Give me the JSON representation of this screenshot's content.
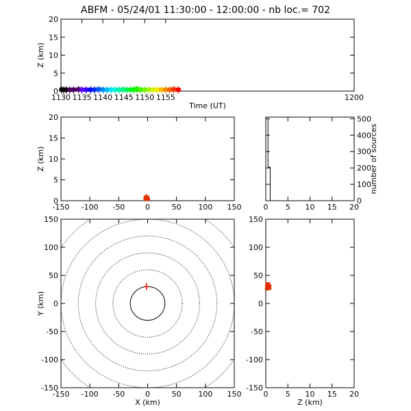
{
  "title": "ABFM - 05/24/01 11:30:00 - 12:00:00 - nb loc.=     702",
  "chart_data": [
    {
      "id": "time-height",
      "type": "scatter",
      "xlabel": "Time (UT)",
      "ylabel": "Z (km)",
      "xlim": [
        1130,
        1200
      ],
      "ylim": [
        0,
        20
      ],
      "xticks": [
        1130,
        1135,
        1140,
        1145,
        1150,
        1155,
        1200
      ],
      "yticks": [
        0,
        5,
        10,
        15,
        20
      ],
      "color_scale": "rainbow: black at 1130 through purple, blue, cyan, green, yellow, orange to red at 1158",
      "points_x": [
        1130.2,
        1130.7,
        1131.3,
        1132.1,
        1133.0,
        1134.2,
        1135.0,
        1136.0,
        1137.1,
        1138.0,
        1139.0,
        1140.1,
        1141.0,
        1142.0,
        1142.9,
        1143.9,
        1144.8,
        1145.7,
        1146.6,
        1147.4,
        1148.1,
        1149.0,
        1150.0,
        1151.1,
        1152.0,
        1153.0,
        1154.0,
        1155.0,
        1156.0,
        1156.9,
        1158.0
      ],
      "points_z": [
        0.3,
        0.3,
        0.3,
        0.3,
        0.3,
        0.4,
        0.3,
        0.3,
        0.3,
        0.3,
        0.4,
        0.3,
        0.3,
        0.3,
        0.3,
        0.3,
        0.3,
        0.3,
        0.3,
        0.3,
        0.5,
        0.3,
        0.3,
        0.3,
        0.3,
        0.3,
        0.3,
        0.3,
        0.3,
        0.4,
        0.3
      ]
    },
    {
      "id": "x-height",
      "type": "scatter",
      "xlabel": "",
      "ylabel": "Z (km)",
      "xlim": [
        -150,
        150
      ],
      "ylim": [
        0,
        20
      ],
      "xticks": [
        -150,
        -100,
        -50,
        0,
        50,
        100,
        150
      ],
      "yticks": [
        0,
        5,
        10,
        15,
        20
      ],
      "points": [
        {
          "x": -2,
          "z": 0.3
        },
        {
          "x": -3,
          "z": 0.5
        },
        {
          "x": -1,
          "z": 0.4
        },
        {
          "x": 0,
          "z": 0.3
        },
        {
          "x": -2,
          "z": 0.8
        }
      ]
    },
    {
      "id": "height-histogram",
      "type": "line",
      "xlabel": "",
      "ylabel": "number of sources",
      "xlim": [
        0,
        20
      ],
      "ylim": [
        0,
        510
      ],
      "xticks": [
        0,
        5,
        10,
        15,
        20
      ],
      "yticks": [
        0,
        100,
        200,
        300,
        400,
        500
      ],
      "steps": [
        {
          "z": 0,
          "count": 500
        },
        {
          "z": 0.5,
          "count": 205
        },
        {
          "z": 1,
          "count": 0
        }
      ]
    },
    {
      "id": "plan-view",
      "type": "scatter",
      "xlabel": "X (km)",
      "ylabel": "Y (km)",
      "xlim": [
        -150,
        150
      ],
      "ylim": [
        -150,
        150
      ],
      "xticks": [
        -150,
        -100,
        -50,
        0,
        50,
        100,
        150
      ],
      "yticks": [
        -150,
        -100,
        -50,
        0,
        50,
        100,
        150
      ],
      "range_rings_km": [
        30,
        60,
        90,
        120,
        150,
        180
      ],
      "points": [
        {
          "x": -2,
          "y": 30
        }
      ]
    },
    {
      "id": "height-y",
      "type": "scatter",
      "xlabel": "Z (km)",
      "ylabel": "",
      "xlim": [
        0,
        20
      ],
      "ylim": [
        -150,
        150
      ],
      "xticks": [
        0,
        5,
        10,
        15,
        20
      ],
      "yticks": [
        -150,
        -100,
        -50,
        0,
        50,
        100,
        150
      ],
      "points": [
        {
          "z": 0.3,
          "y": 28
        },
        {
          "z": 0.6,
          "y": 31
        },
        {
          "z": 0.4,
          "y": 33
        },
        {
          "z": 0.8,
          "y": 29
        }
      ]
    }
  ],
  "colors": {
    "red": "#ff0000",
    "marker_red": "#e03000",
    "frame": "#000000",
    "background": "#ffffff"
  }
}
